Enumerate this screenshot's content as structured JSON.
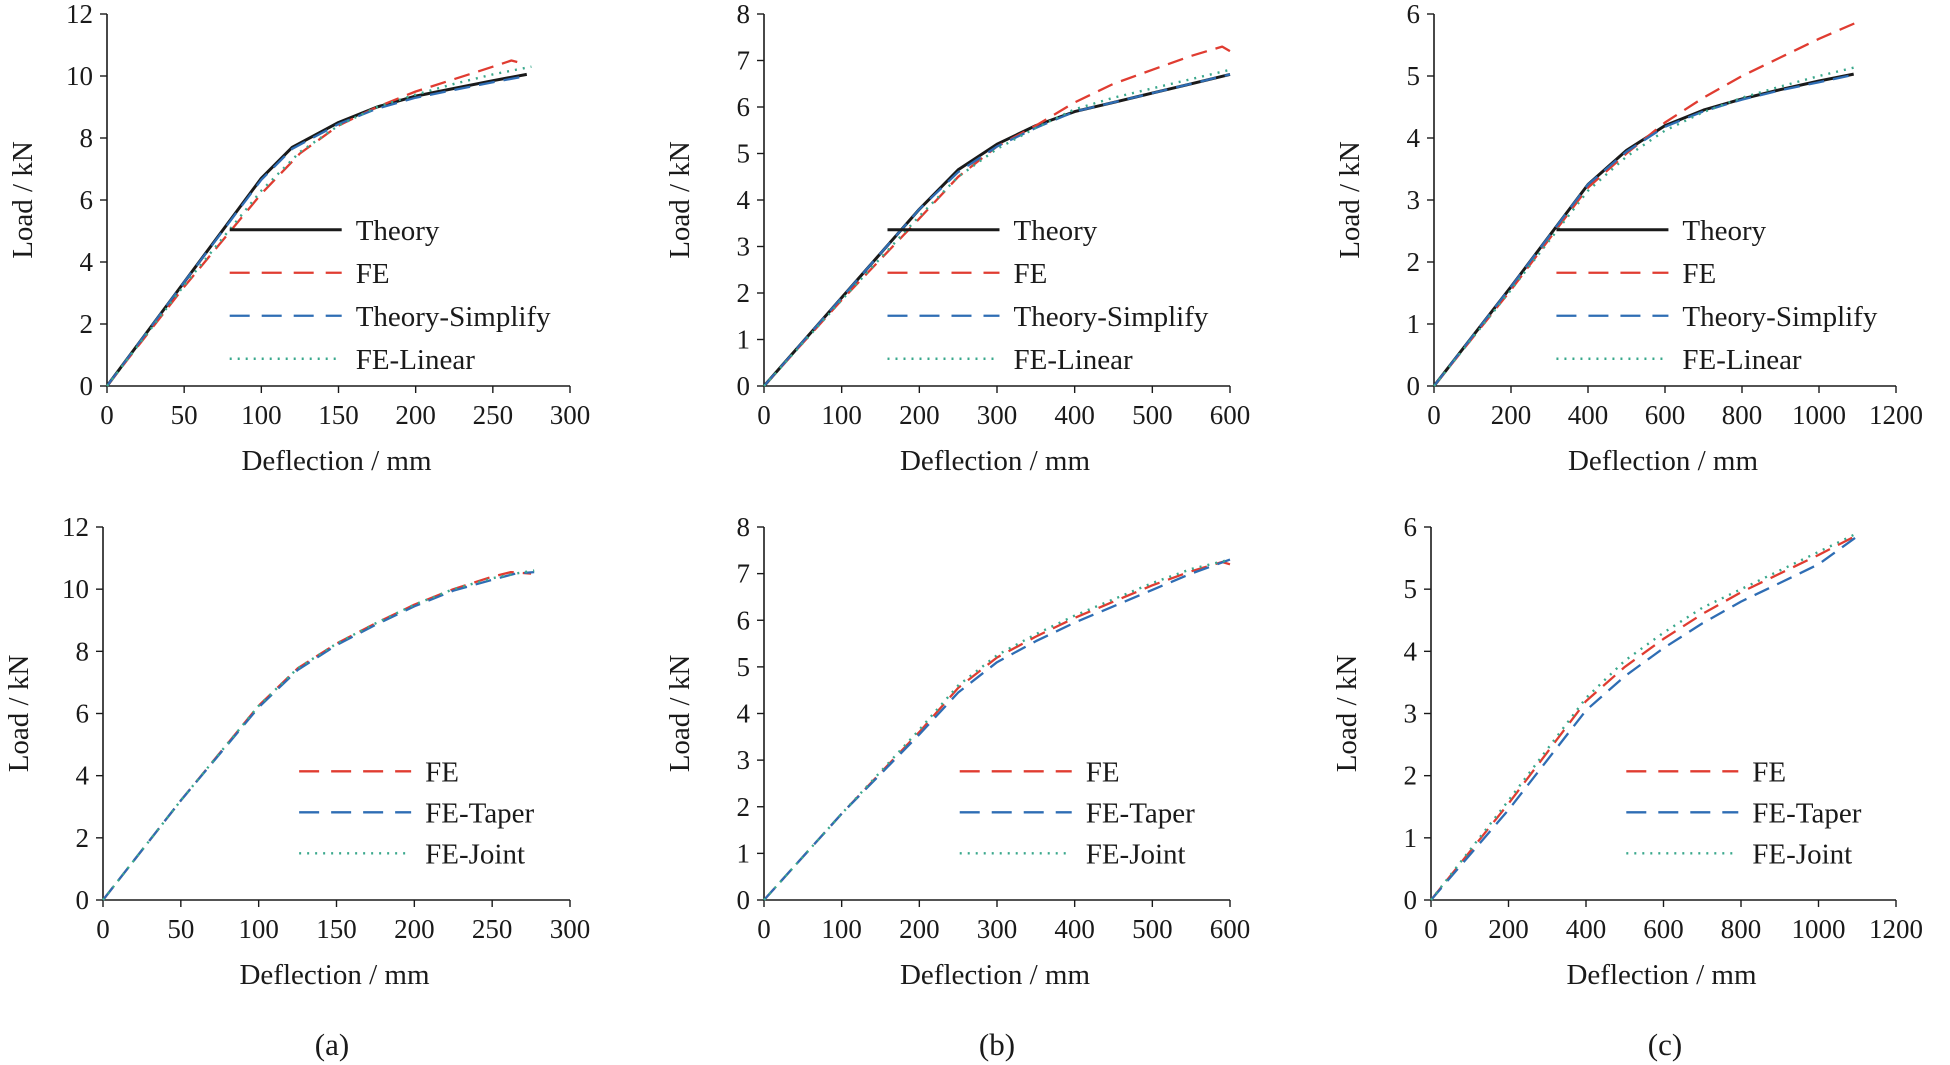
{
  "chart_data": [
    {
      "id": "a-top",
      "type": "line",
      "xlabel": "Deflection / mm",
      "ylabel": "Load / kN",
      "xlim": [
        0,
        300
      ],
      "ylim": [
        0,
        12
      ],
      "xticks": [
        0,
        50,
        100,
        150,
        200,
        250,
        300
      ],
      "yticks": [
        0,
        2,
        4,
        6,
        8,
        10,
        12
      ],
      "legend_position": "center-right",
      "series": [
        {
          "name": "Theory",
          "color": "#1a1a1a",
          "style": "solid",
          "x": [
            0,
            50,
            100,
            120,
            150,
            175,
            200,
            225,
            250,
            272
          ],
          "y": [
            0,
            3.35,
            6.7,
            7.7,
            8.5,
            9.0,
            9.35,
            9.6,
            9.85,
            10.05
          ]
        },
        {
          "name": "FE",
          "color": "#e03c31",
          "style": "dashed",
          "x": [
            0,
            50,
            100,
            125,
            150,
            175,
            200,
            225,
            250,
            262,
            270
          ],
          "y": [
            0,
            3.2,
            6.2,
            7.5,
            8.4,
            9.0,
            9.5,
            9.9,
            10.3,
            10.5,
            10.4
          ]
        },
        {
          "name": "Theory-Simplify",
          "color": "#2e6db4",
          "style": "dashed",
          "x": [
            0,
            50,
            100,
            120,
            150,
            175,
            200,
            225,
            250,
            272
          ],
          "y": [
            0,
            3.35,
            6.65,
            7.65,
            8.45,
            8.95,
            9.3,
            9.55,
            9.8,
            10.0
          ]
        },
        {
          "name": "FE-Linear",
          "color": "#3aa88c",
          "style": "dotted",
          "x": [
            0,
            50,
            100,
            125,
            150,
            175,
            200,
            225,
            250,
            275
          ],
          "y": [
            0,
            3.25,
            6.3,
            7.55,
            8.4,
            9.0,
            9.4,
            9.75,
            10.05,
            10.3
          ]
        }
      ]
    },
    {
      "id": "b-top",
      "type": "line",
      "xlabel": "Deflection / mm",
      "ylabel": "Load / kN",
      "xlim": [
        0,
        600
      ],
      "ylim": [
        0,
        8
      ],
      "xticks": [
        0,
        100,
        200,
        300,
        400,
        500,
        600
      ],
      "yticks": [
        0,
        1,
        2,
        3,
        4,
        5,
        6,
        7,
        8
      ],
      "legend_position": "center-right",
      "series": [
        {
          "name": "Theory",
          "color": "#1a1a1a",
          "style": "solid",
          "x": [
            0,
            100,
            200,
            250,
            300,
            350,
            400,
            450,
            500,
            550,
            600
          ],
          "y": [
            0,
            1.9,
            3.8,
            4.65,
            5.2,
            5.6,
            5.9,
            6.1,
            6.3,
            6.5,
            6.7
          ]
        },
        {
          "name": "FE",
          "color": "#e03c31",
          "style": "dashed",
          "x": [
            0,
            100,
            200,
            250,
            300,
            350,
            400,
            450,
            500,
            550,
            590,
            600
          ],
          "y": [
            0,
            1.85,
            3.6,
            4.5,
            5.15,
            5.6,
            6.1,
            6.5,
            6.8,
            7.1,
            7.3,
            7.2
          ]
        },
        {
          "name": "Theory-Simplify",
          "color": "#2e6db4",
          "style": "dashed",
          "x": [
            0,
            100,
            200,
            250,
            300,
            350,
            400,
            450,
            500,
            550,
            600
          ],
          "y": [
            0,
            1.9,
            3.8,
            4.6,
            5.15,
            5.55,
            5.9,
            6.1,
            6.3,
            6.5,
            6.7
          ]
        },
        {
          "name": "FE-Linear",
          "color": "#3aa88c",
          "style": "dotted",
          "x": [
            0,
            100,
            200,
            250,
            300,
            350,
            400,
            450,
            500,
            550,
            600
          ],
          "y": [
            0,
            1.85,
            3.65,
            4.5,
            5.1,
            5.55,
            5.95,
            6.2,
            6.4,
            6.6,
            6.8
          ]
        }
      ]
    },
    {
      "id": "c-top",
      "type": "line",
      "xlabel": "Deflection / mm",
      "ylabel": "Load / kN",
      "xlim": [
        0,
        1200
      ],
      "ylim": [
        0,
        6
      ],
      "xticks": [
        0,
        200,
        400,
        600,
        800,
        1000,
        1200
      ],
      "yticks": [
        0,
        1,
        2,
        3,
        4,
        5,
        6
      ],
      "legend_position": "center-right",
      "series": [
        {
          "name": "Theory",
          "color": "#1a1a1a",
          "style": "solid",
          "x": [
            0,
            200,
            400,
            500,
            600,
            700,
            800,
            900,
            1000,
            1090
          ],
          "y": [
            0,
            1.6,
            3.25,
            3.8,
            4.2,
            4.45,
            4.63,
            4.78,
            4.92,
            5.03
          ]
        },
        {
          "name": "FE",
          "color": "#e03c31",
          "style": "dashed",
          "x": [
            0,
            200,
            400,
            500,
            600,
            700,
            800,
            900,
            1000,
            1100
          ],
          "y": [
            0,
            1.55,
            3.2,
            3.75,
            4.25,
            4.65,
            5.0,
            5.3,
            5.6,
            5.87
          ]
        },
        {
          "name": "Theory-Simplify",
          "color": "#2e6db4",
          "style": "dashed",
          "x": [
            0,
            200,
            400,
            500,
            600,
            700,
            800,
            900,
            1000,
            1090
          ],
          "y": [
            0,
            1.6,
            3.25,
            3.78,
            4.18,
            4.43,
            4.62,
            4.77,
            4.9,
            5.02
          ]
        },
        {
          "name": "FE-Linear",
          "color": "#3aa88c",
          "style": "dotted",
          "x": [
            0,
            200,
            400,
            500,
            600,
            700,
            800,
            900,
            1000,
            1100
          ],
          "y": [
            0,
            1.55,
            3.15,
            3.7,
            4.12,
            4.42,
            4.65,
            4.83,
            5.0,
            5.15
          ]
        }
      ]
    },
    {
      "id": "a-bottom",
      "type": "line",
      "xlabel": "Deflection / mm",
      "ylabel": "Load / kN",
      "xlim": [
        0,
        300
      ],
      "ylim": [
        0,
        12
      ],
      "xticks": [
        0,
        50,
        100,
        150,
        200,
        250,
        300
      ],
      "yticks": [
        0,
        2,
        4,
        6,
        8,
        10,
        12
      ],
      "legend_position": "bottom-right",
      "series": [
        {
          "name": "FE",
          "color": "#e03c31",
          "style": "dashed",
          "x": [
            0,
            50,
            100,
            125,
            150,
            175,
            200,
            225,
            250,
            262,
            275
          ],
          "y": [
            0,
            3.2,
            6.25,
            7.45,
            8.25,
            8.9,
            9.5,
            10.0,
            10.4,
            10.55,
            10.5
          ]
        },
        {
          "name": "FE-Taper",
          "color": "#2e6db4",
          "style": "dashed",
          "x": [
            0,
            50,
            100,
            125,
            150,
            175,
            200,
            225,
            250,
            265,
            277
          ],
          "y": [
            0,
            3.2,
            6.2,
            7.4,
            8.2,
            8.85,
            9.45,
            9.95,
            10.3,
            10.5,
            10.55
          ]
        },
        {
          "name": "FE-Joint",
          "color": "#3aa88c",
          "style": "dotted",
          "x": [
            0,
            50,
            100,
            125,
            150,
            175,
            200,
            225,
            250,
            265,
            277
          ],
          "y": [
            0,
            3.2,
            6.25,
            7.45,
            8.25,
            8.9,
            9.5,
            10.0,
            10.35,
            10.5,
            10.6
          ]
        }
      ]
    },
    {
      "id": "b-bottom",
      "type": "line",
      "xlabel": "Deflection / mm",
      "ylabel": "Load / kN",
      "xlim": [
        0,
        600
      ],
      "ylim": [
        0,
        8
      ],
      "xticks": [
        0,
        100,
        200,
        300,
        400,
        500,
        600
      ],
      "yticks": [
        0,
        1,
        2,
        3,
        4,
        5,
        6,
        7,
        8
      ],
      "legend_position": "bottom-right",
      "series": [
        {
          "name": "FE",
          "color": "#e03c31",
          "style": "dashed",
          "x": [
            0,
            100,
            200,
            250,
            300,
            350,
            400,
            450,
            500,
            550,
            590,
            600
          ],
          "y": [
            0,
            1.85,
            3.6,
            4.55,
            5.2,
            5.65,
            6.05,
            6.4,
            6.75,
            7.05,
            7.25,
            7.2
          ]
        },
        {
          "name": "FE-Taper",
          "color": "#2e6db4",
          "style": "dashed",
          "x": [
            0,
            100,
            200,
            250,
            300,
            350,
            400,
            450,
            500,
            550,
            600
          ],
          "y": [
            0,
            1.85,
            3.55,
            4.45,
            5.1,
            5.55,
            5.95,
            6.3,
            6.65,
            7.0,
            7.3
          ]
        },
        {
          "name": "FE-Joint",
          "color": "#3aa88c",
          "style": "dotted",
          "x": [
            0,
            100,
            200,
            250,
            300,
            350,
            400,
            450,
            500,
            550,
            600
          ],
          "y": [
            0,
            1.85,
            3.65,
            4.6,
            5.25,
            5.7,
            6.1,
            6.45,
            6.8,
            7.1,
            7.3
          ]
        }
      ]
    },
    {
      "id": "c-bottom",
      "type": "line",
      "xlabel": "Deflection / mm",
      "ylabel": "Load / kN",
      "xlim": [
        0,
        1200
      ],
      "ylim": [
        0,
        6
      ],
      "xticks": [
        0,
        200,
        400,
        600,
        800,
        1000,
        1200
      ],
      "yticks": [
        0,
        1,
        2,
        3,
        4,
        5,
        6
      ],
      "legend_position": "bottom-right",
      "series": [
        {
          "name": "FE",
          "color": "#e03c31",
          "style": "dashed",
          "x": [
            0,
            200,
            400,
            500,
            600,
            700,
            800,
            900,
            1000,
            1100
          ],
          "y": [
            0,
            1.55,
            3.2,
            3.75,
            4.2,
            4.6,
            4.95,
            5.25,
            5.55,
            5.87
          ]
        },
        {
          "name": "FE-Taper",
          "color": "#2e6db4",
          "style": "dashed",
          "x": [
            0,
            200,
            400,
            500,
            600,
            700,
            800,
            900,
            1000,
            1100
          ],
          "y": [
            0,
            1.45,
            3.05,
            3.6,
            4.05,
            4.45,
            4.8,
            5.1,
            5.4,
            5.85
          ]
        },
        {
          "name": "FE-Joint",
          "color": "#3aa88c",
          "style": "dotted",
          "x": [
            0,
            200,
            400,
            500,
            600,
            700,
            800,
            900,
            1000,
            1100
          ],
          "y": [
            0,
            1.6,
            3.25,
            3.85,
            4.3,
            4.7,
            5.0,
            5.3,
            5.6,
            5.9
          ]
        }
      ]
    }
  ],
  "captions": [
    "(a)",
    "(b)",
    "(c)"
  ]
}
